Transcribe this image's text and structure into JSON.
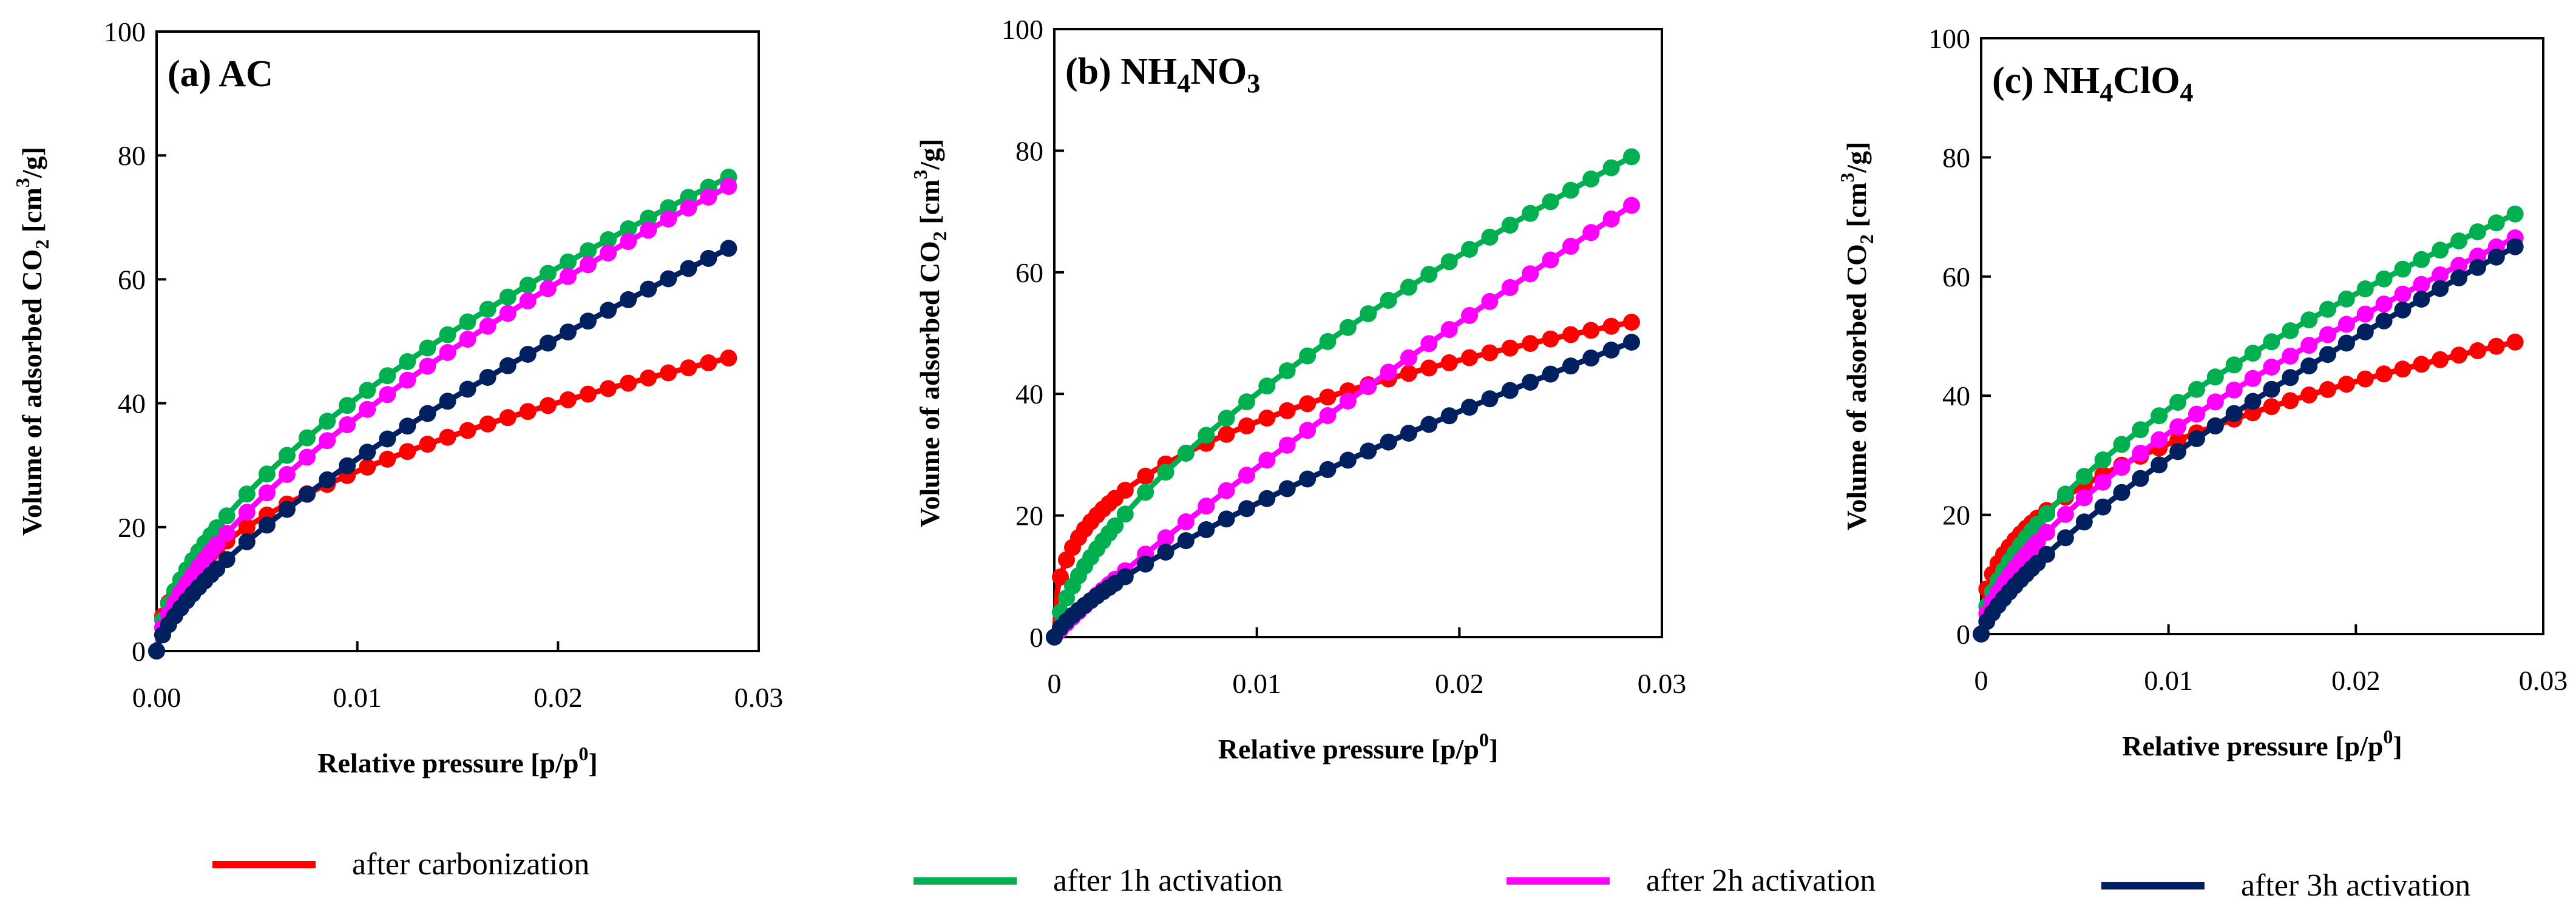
{
  "chart_data": [
    {
      "type": "line",
      "title_main": "(a) AC",
      "title_sub": "",
      "title_after": "",
      "xlabel": {
        "main": "Relative pressure [p/p",
        "sup": "0",
        "after": "]"
      },
      "ylabel": {
        "main": "Volume of adsorbed CO",
        "sub": "2",
        "middle": " [cm",
        "sup": "3",
        "after": "/g]"
      },
      "xlim": [
        0,
        0.03
      ],
      "ylim": [
        0,
        100
      ],
      "xticks": [
        "0.00",
        "0.01",
        "0.02",
        "0.03"
      ],
      "yticks": [
        "0",
        "20",
        "40",
        "60",
        "80",
        "100"
      ],
      "series": [
        {
          "name": "after carbonization",
          "color": "#ff0000",
          "p_end": 0.0285,
          "v_end": 47.3,
          "v_early": 21.0
        },
        {
          "name": "after 1h activation",
          "color": "#00b050",
          "p_end": 0.0285,
          "v_end": 76.5,
          "v_early": 27.0
        },
        {
          "name": "after 2h activation",
          "color": "#ff00ff",
          "p_end": 0.0285,
          "v_end": 75.0,
          "v_early": 24.0
        },
        {
          "name": "after 3h activation",
          "color": "#002060",
          "p_end": 0.0285,
          "v_end": 65.0,
          "v_early": 19.0
        }
      ]
    },
    {
      "type": "line",
      "title_main": "(b) NH",
      "title_sub": "4",
      "title_after": "NO",
      "title_sub2": "3",
      "xlabel": {
        "main": "Relative pressure [p/p",
        "sup": "0",
        "after": "]"
      },
      "ylabel": {
        "main": "Volume of adsorbed CO",
        "sub": "2",
        "middle": " [cm",
        "sup": "3",
        "after": "/g]"
      },
      "xlim": [
        0,
        0.03
      ],
      "ylim": [
        0,
        100
      ],
      "xticks": [
        "0",
        "0.01",
        "0.02",
        "0.03"
      ],
      "yticks": [
        "0",
        "20",
        "40",
        "60",
        "80",
        "100"
      ],
      "series": [
        {
          "name": "after carbonization",
          "color": "#ff0000",
          "p_end": 0.0285,
          "v_end": 51.8,
          "v_early": 27.5
        },
        {
          "name": "after 1h activation",
          "color": "#00b050",
          "p_end": 0.0285,
          "v_end": 79.0,
          "v_early": 25.5
        },
        {
          "name": "after 2h activation",
          "color": "#ff00ff",
          "p_end": 0.0285,
          "v_end": 71.0,
          "v_early": 15.0
        },
        {
          "name": "after 3h activation",
          "color": "#002060",
          "p_end": 0.0285,
          "v_end": 48.5,
          "v_early": 13.0
        }
      ]
    },
    {
      "type": "line",
      "title_main": "(c) NH",
      "title_sub": "4",
      "title_after": "ClO",
      "title_sub2": "4",
      "xlabel": {
        "main": "Relative pressure [p/p",
        "sup": "0",
        "after": "]"
      },
      "ylabel": {
        "main": "Volume of adsorbed CO",
        "sub": "2",
        "middle": " [cm",
        "sup": "3",
        "after": "/g]"
      },
      "xlim": [
        0,
        0.03
      ],
      "ylim": [
        0,
        100
      ],
      "xticks": [
        "0",
        "0.01",
        "0.02",
        "0.03"
      ],
      "yticks": [
        "0",
        "20",
        "40",
        "60",
        "80",
        "100"
      ],
      "series": [
        {
          "name": "after carbonization",
          "color": "#ff0000",
          "p_end": 0.0285,
          "v_end": 49.0,
          "v_early": 24.0
        },
        {
          "name": "after 1h activation",
          "color": "#00b050",
          "p_end": 0.0285,
          "v_end": 70.5,
          "v_early": 25.0
        },
        {
          "name": "after 2h activation",
          "color": "#ff00ff",
          "p_end": 0.0285,
          "v_end": 66.5,
          "v_early": 21.5
        },
        {
          "name": "after 3h activation",
          "color": "#002060",
          "p_end": 0.0285,
          "v_end": 65.0,
          "v_early": 17.5
        }
      ]
    }
  ],
  "legend": [
    {
      "label": "after carbonization",
      "color": "#ff0000"
    },
    {
      "label": "after 1h activation",
      "color": "#00b050"
    },
    {
      "label": "after 2h activation",
      "color": "#ff00ff"
    },
    {
      "label": "after 3h activation",
      "color": "#002060"
    }
  ]
}
